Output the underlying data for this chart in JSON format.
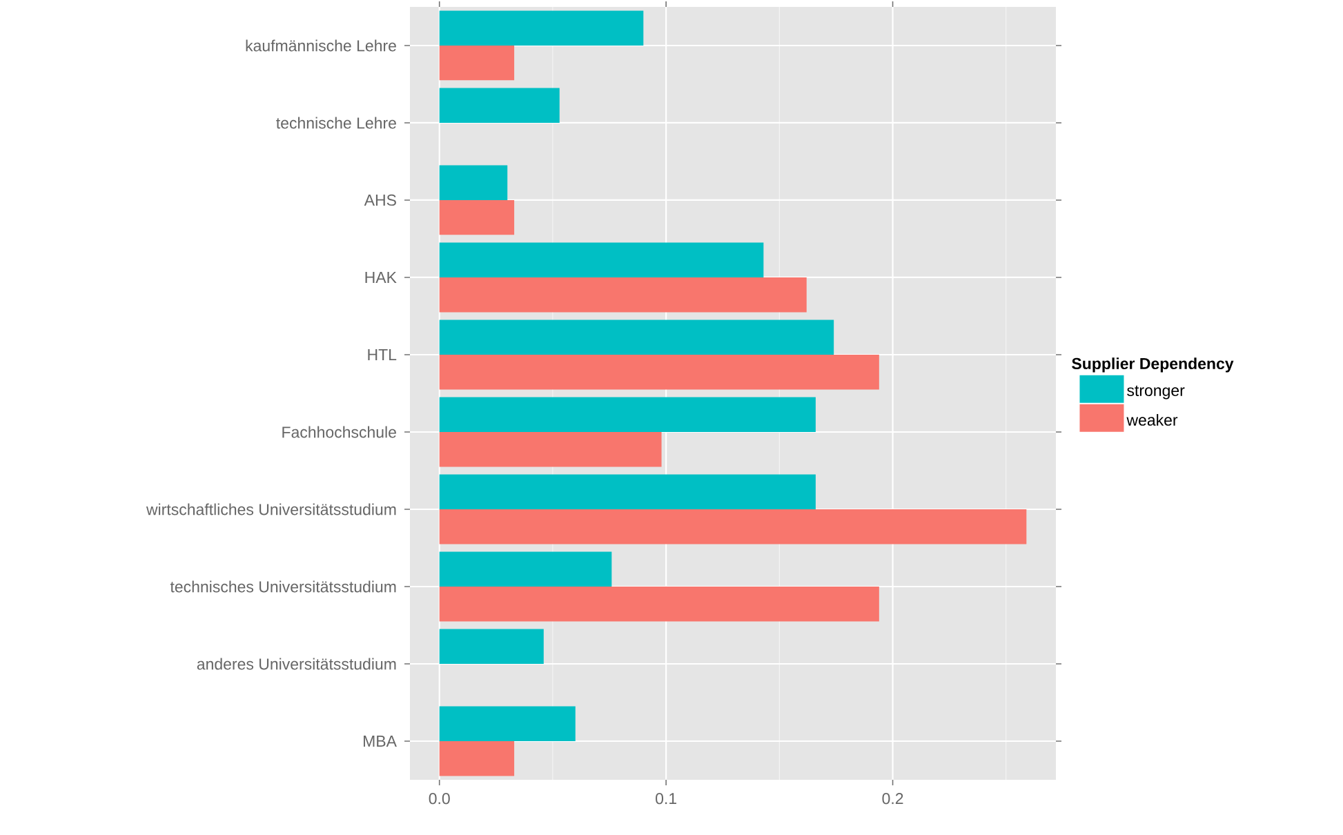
{
  "chart_data": {
    "type": "bar",
    "orientation": "horizontal",
    "categories": [
      "kaufmännische Lehre",
      "technische Lehre",
      "AHS",
      "HAK",
      "HTL",
      "Fachhochschule",
      "wirtschaftliches Universitätsstudium",
      "technisches Universitätsstudium",
      "anderes Universitätsstudium",
      "MBA"
    ],
    "series": [
      {
        "name": "stronger",
        "color": "#00bfc4",
        "values": [
          0.09,
          0.053,
          0.03,
          0.143,
          0.174,
          0.166,
          0.166,
          0.076,
          0.046,
          0.06
        ]
      },
      {
        "name": "weaker",
        "color": "#f8766d",
        "values": [
          0.033,
          null,
          0.033,
          0.162,
          0.194,
          0.098,
          0.259,
          0.194,
          null,
          0.033
        ]
      }
    ],
    "legend_title": "Supplier Dependency",
    "legend": "right",
    "xlim": [
      -0.013,
      0.272
    ],
    "xticks": [
      {
        "value": 0,
        "label": "0.0"
      },
      {
        "value": 0.05,
        "label": null
      },
      {
        "value": 0.1,
        "label": "0.1"
      },
      {
        "value": 0.15,
        "label": null
      },
      {
        "value": 0.2,
        "label": "0.2"
      },
      {
        "value": 0.25,
        "label": null
      }
    ],
    "grid": true
  }
}
